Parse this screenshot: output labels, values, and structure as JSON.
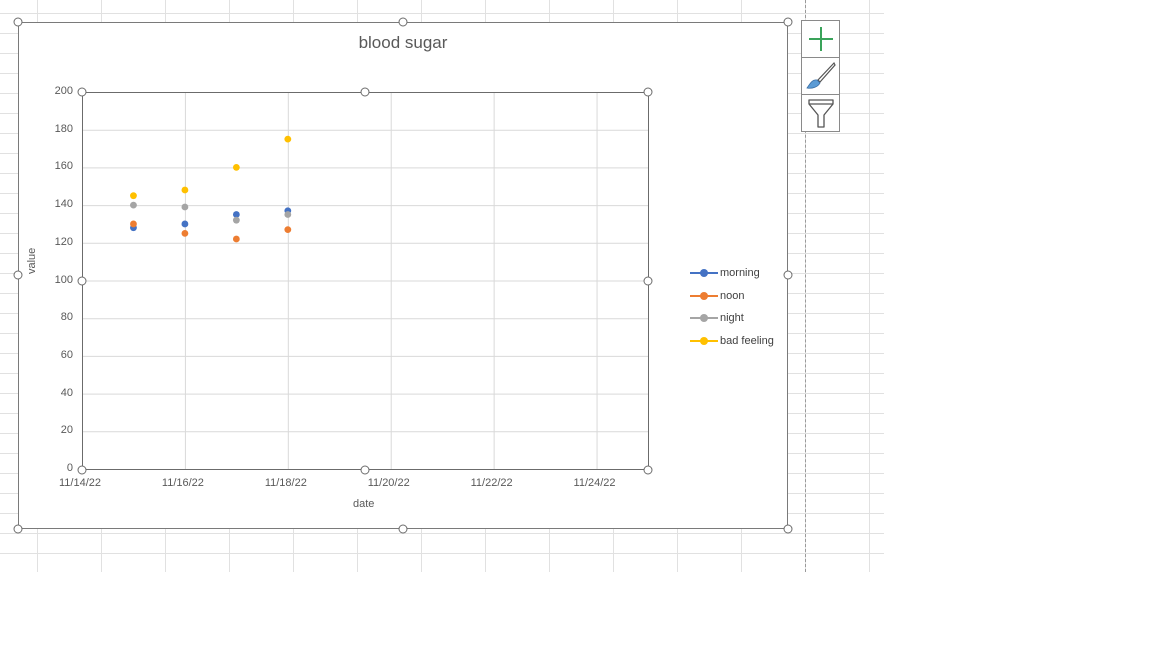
{
  "chart_data": {
    "type": "scatter",
    "title": "blood sugar",
    "xlabel": "date",
    "ylabel": "value",
    "x_ticks": [
      "11/14/22",
      "11/16/22",
      "11/18/22",
      "11/20/22",
      "11/22/22",
      "11/24/22"
    ],
    "y_ticks": [
      0,
      20,
      40,
      60,
      80,
      100,
      120,
      140,
      160,
      180,
      200
    ],
    "xlim": [
      "11/14/22",
      "11/25/22"
    ],
    "ylim": [
      0,
      200
    ],
    "grid": true,
    "legend_position": "right",
    "x": [
      "11/15/22",
      "11/16/22",
      "11/17/22",
      "11/18/22"
    ],
    "series": [
      {
        "name": "morning",
        "color": "#4472C4",
        "values": [
          128,
          130,
          135,
          137
        ]
      },
      {
        "name": "noon",
        "color": "#ED7D31",
        "values": [
          130,
          125,
          122,
          127
        ]
      },
      {
        "name": "night",
        "color": "#A5A5A5",
        "values": [
          140,
          139,
          132,
          135
        ]
      },
      {
        "name": "bad feeling",
        "color": "#FFC000",
        "values": [
          145,
          148,
          160,
          175
        ]
      }
    ]
  },
  "side_buttons": [
    {
      "name": "chart-elements",
      "icon": "plus-icon"
    },
    {
      "name": "chart-styles",
      "icon": "paintbrush-icon"
    },
    {
      "name": "chart-filters",
      "icon": "funnel-icon"
    }
  ]
}
